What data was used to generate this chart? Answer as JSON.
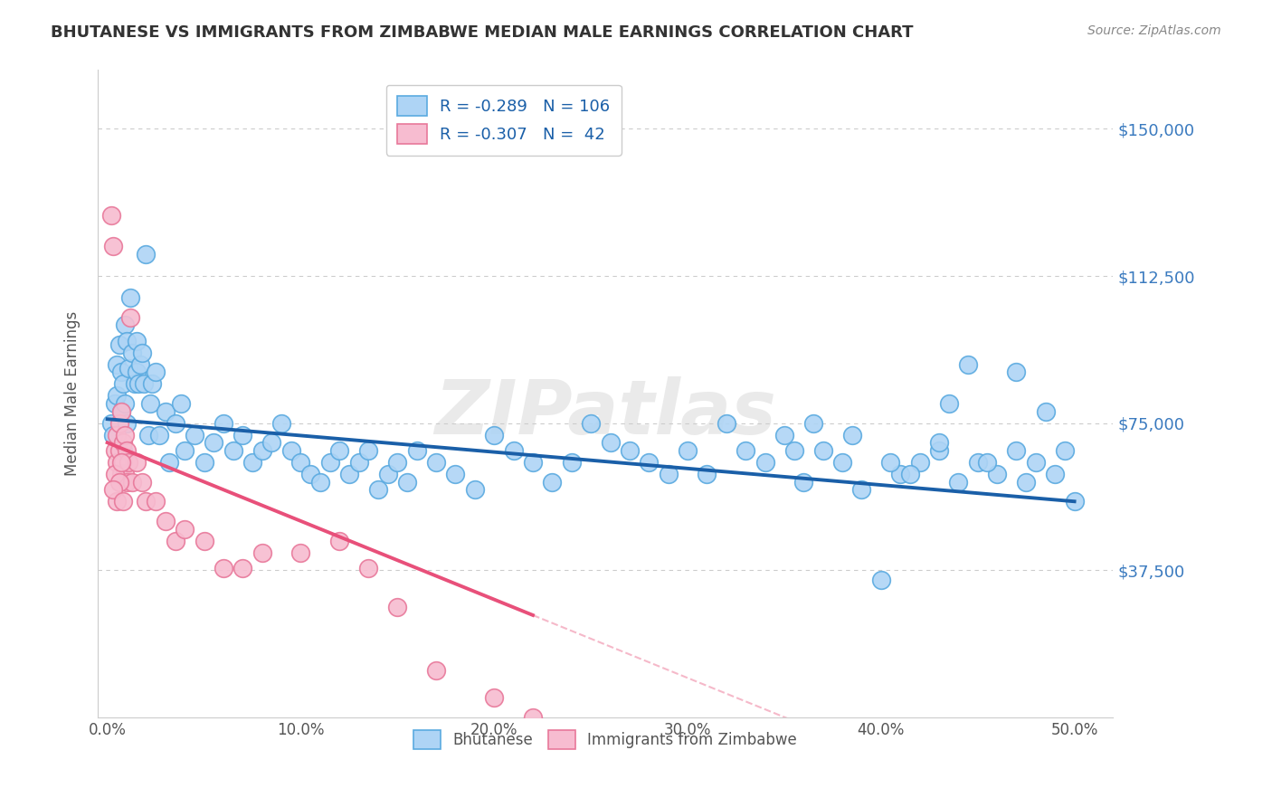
{
  "title": "BHUTANESE VS IMMIGRANTS FROM ZIMBABWE MEDIAN MALE EARNINGS CORRELATION CHART",
  "source": "Source: ZipAtlas.com",
  "xlabel_ticks": [
    "0.0%",
    "10.0%",
    "20.0%",
    "30.0%",
    "40.0%",
    "50.0%"
  ],
  "xlabel_vals": [
    0.0,
    10.0,
    20.0,
    30.0,
    40.0,
    50.0
  ],
  "ylabel_ticks": [
    "$37,500",
    "$75,000",
    "$112,500",
    "$150,000"
  ],
  "ylabel_vals": [
    37500,
    75000,
    112500,
    150000
  ],
  "ylim": [
    0,
    165000
  ],
  "xlim": [
    -0.5,
    52
  ],
  "blue_r": -0.289,
  "blue_n": 106,
  "pink_r": -0.307,
  "pink_n": 42,
  "blue_color": "#aed4f5",
  "blue_edge": "#5aaae0",
  "pink_color": "#f7bcd0",
  "pink_edge": "#e8789a",
  "blue_line_color": "#1a5fa8",
  "pink_line_color": "#e8507a",
  "watermark": "ZIPatlas",
  "bg_color": "#ffffff",
  "grid_color": "#cccccc",
  "blue_x": [
    0.2,
    0.3,
    0.4,
    0.5,
    0.5,
    0.6,
    0.7,
    0.7,
    0.8,
    0.8,
    0.9,
    0.9,
    1.0,
    1.0,
    1.1,
    1.2,
    1.3,
    1.4,
    1.5,
    1.5,
    1.6,
    1.7,
    1.8,
    1.9,
    2.0,
    2.1,
    2.2,
    2.3,
    2.5,
    2.7,
    3.0,
    3.2,
    3.5,
    3.8,
    4.0,
    4.5,
    5.0,
    5.5,
    6.0,
    6.5,
    7.0,
    7.5,
    8.0,
    8.5,
    9.0,
    9.5,
    10.0,
    10.5,
    11.0,
    11.5,
    12.0,
    12.5,
    13.0,
    13.5,
    14.0,
    14.5,
    15.0,
    15.5,
    16.0,
    17.0,
    18.0,
    19.0,
    20.0,
    21.0,
    22.0,
    23.0,
    24.0,
    25.0,
    26.0,
    27.0,
    28.0,
    29.0,
    30.0,
    31.0,
    32.0,
    33.0,
    34.0,
    35.0,
    36.0,
    37.0,
    38.0,
    39.0,
    40.0,
    41.0,
    42.0,
    43.0,
    44.0,
    45.0,
    46.0,
    47.0,
    47.5,
    48.0,
    49.0,
    49.5,
    43.5,
    44.5,
    47.0,
    48.5,
    38.5,
    40.5,
    35.5,
    36.5,
    45.5,
    43.0,
    41.5,
    50.0
  ],
  "blue_y": [
    75000,
    72000,
    80000,
    90000,
    82000,
    95000,
    78000,
    88000,
    85000,
    68000,
    100000,
    80000,
    96000,
    75000,
    89000,
    107000,
    93000,
    85000,
    96000,
    88000,
    85000,
    90000,
    93000,
    85000,
    118000,
    72000,
    80000,
    85000,
    88000,
    72000,
    78000,
    65000,
    75000,
    80000,
    68000,
    72000,
    65000,
    70000,
    75000,
    68000,
    72000,
    65000,
    68000,
    70000,
    75000,
    68000,
    65000,
    62000,
    60000,
    65000,
    68000,
    62000,
    65000,
    68000,
    58000,
    62000,
    65000,
    60000,
    68000,
    65000,
    62000,
    58000,
    72000,
    68000,
    65000,
    60000,
    65000,
    75000,
    70000,
    68000,
    65000,
    62000,
    68000,
    62000,
    75000,
    68000,
    65000,
    72000,
    60000,
    68000,
    65000,
    58000,
    35000,
    62000,
    65000,
    68000,
    60000,
    65000,
    62000,
    68000,
    60000,
    65000,
    62000,
    68000,
    80000,
    90000,
    88000,
    78000,
    72000,
    65000,
    68000,
    75000,
    65000,
    70000,
    62000,
    55000
  ],
  "pink_x": [
    0.2,
    0.3,
    0.4,
    0.5,
    0.5,
    0.6,
    0.6,
    0.7,
    0.7,
    0.8,
    0.8,
    0.9,
    0.9,
    1.0,
    1.0,
    1.1,
    1.2,
    1.3,
    1.5,
    1.8,
    2.0,
    2.5,
    3.0,
    3.5,
    4.0,
    5.0,
    6.0,
    7.0,
    8.0,
    10.0,
    12.0,
    13.5,
    15.0,
    17.0,
    20.0,
    22.0,
    0.4,
    0.5,
    0.6,
    0.7,
    0.3,
    0.8
  ],
  "pink_y": [
    128000,
    120000,
    68000,
    72000,
    65000,
    75000,
    68000,
    78000,
    62000,
    70000,
    65000,
    72000,
    62000,
    68000,
    60000,
    65000,
    102000,
    60000,
    65000,
    60000,
    55000,
    55000,
    50000,
    45000,
    48000,
    45000,
    38000,
    38000,
    42000,
    42000,
    45000,
    38000,
    28000,
    12000,
    5000,
    0,
    62000,
    55000,
    60000,
    65000,
    58000,
    55000
  ]
}
